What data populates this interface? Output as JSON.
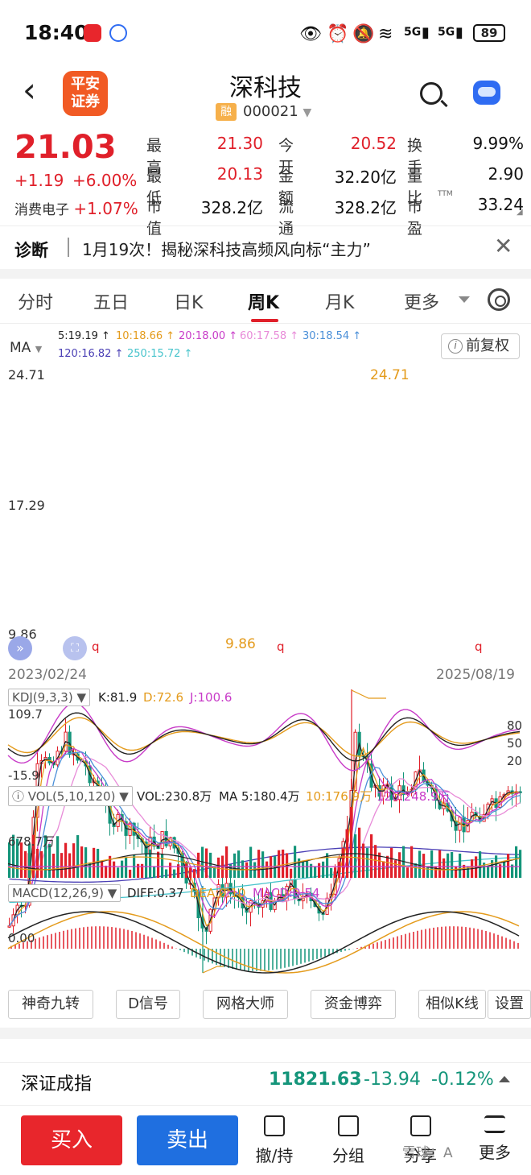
{
  "status": {
    "time": "18:40",
    "signal1": "5G",
    "signal2": "5G",
    "battery": "89"
  },
  "header": {
    "logo_line1": "平安",
    "logo_line2": "证券",
    "title": "深科技",
    "rong": "融",
    "code": "000021"
  },
  "quote": {
    "price": "21.03",
    "change": "+1.19",
    "change_pct": "+6.00%",
    "sector": "消费电子",
    "sector_pct": "+1.07%",
    "rows": [
      [
        {
          "label": "最高",
          "value": "21.30",
          "color": "red"
        },
        {
          "label": "今开",
          "value": "20.52",
          "color": "red"
        },
        {
          "label": "换手",
          "value": "9.99%",
          "color": "black"
        }
      ],
      [
        {
          "label": "最低",
          "value": "20.13",
          "color": "red"
        },
        {
          "label": "金额",
          "value": "32.20亿",
          "color": "black"
        },
        {
          "label": "量比",
          "value": "2.90",
          "color": "black"
        }
      ],
      [
        {
          "label": "市值",
          "value": "328.2亿",
          "color": "black"
        },
        {
          "label": "流通",
          "value": "328.2亿",
          "color": "black"
        },
        {
          "label": "市盈",
          "value": "33.24",
          "color": "black"
        }
      ]
    ],
    "ttm": "TTM"
  },
  "diagnosis": {
    "label": "诊断",
    "text": "1月19次！揭秘深科技高频风向标“主力”"
  },
  "tabs": [
    "分时",
    "五日",
    "日K",
    "周K",
    "月K",
    "更多"
  ],
  "active_tab": "周K",
  "ma": {
    "label": "MA",
    "items": [
      {
        "text": "5:19.19 ↑",
        "color": "#222222"
      },
      {
        "text": "10:18.66 ↑",
        "color": "#e49b1c"
      },
      {
        "text": "20:18.00 ↑",
        "color": "#c83cc8"
      },
      {
        "text": "60:17.58 ↑",
        "color": "#e88bd8"
      },
      {
        "text": "30:18.54 ↑",
        "color": "#4a8fd8"
      },
      {
        "text": "120:16.82 ↑",
        "color": "#4a3fb5"
      },
      {
        "text": "250:15.72 ↑",
        "color": "#48c4cc"
      }
    ],
    "fuquan": "前复权"
  },
  "kline": {
    "y_high": "24.71",
    "y_mid": "17.29",
    "y_low": "9.86",
    "peak_label": "24.71",
    "trough_label": "9.86",
    "q_markers": [
      "q",
      "q",
      "q"
    ],
    "date_start": "2023/02/24",
    "date_end": "2025/08/19"
  },
  "kdj": {
    "title": "KDJ(9,3,3)",
    "k": "K:81.9",
    "d": "D:72.6",
    "j": "J:100.6",
    "y_top": "109.7",
    "y_bot": "-15.9",
    "levels": [
      "80",
      "50",
      "20"
    ]
  },
  "vol": {
    "title": "VOL(5,10,120)",
    "vol": "VOL:230.8万",
    "ma5": "MA 5:180.4万",
    "ma10": "10:176.9万",
    "ma120": "120:248.9万",
    "y_top": "678.7万"
  },
  "macd": {
    "title": "MACD(12,26,9)",
    "diff": "DIFF:0.37",
    "dea": "DEA:0.10",
    "macd": "MACD:0.54",
    "zero": "0.00"
  },
  "tools": [
    "神奇九转",
    "D信号",
    "网格大师",
    "资金博弈",
    "相似K线",
    "设置"
  ],
  "index": {
    "name": "深证成指",
    "value": "11821.63",
    "change": "-13.94",
    "pct": "-0.12%"
  },
  "bottom": {
    "buy": "买入",
    "sell": "卖出",
    "nav": [
      "撤/持",
      "分组",
      "分享",
      "更多"
    ],
    "watermark": "雪球：A"
  },
  "colors": {
    "up": "#e0202a",
    "down": "#14957a",
    "buy_btn": "#e8262c",
    "sell_btn": "#1f6fe0"
  }
}
